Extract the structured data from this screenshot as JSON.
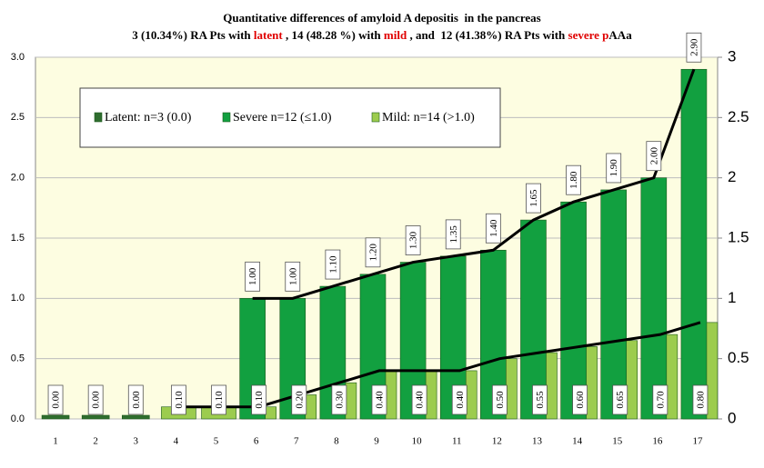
{
  "chart_data": {
    "type": "bar",
    "title": "Quantitative differences of amyloid A depositis  in the pancreas",
    "subtitle": [
      {
        "text": "3 (10.34%) RA Pts with ",
        "color": "#000000"
      },
      {
        "text": "latent",
        "color": "#e00000"
      },
      {
        "text": " , 14 (48.28 %) with ",
        "color": "#000000"
      },
      {
        "text": "mild",
        "color": "#e00000"
      },
      {
        "text": " , and  12 (41.38%) RA Pts with ",
        "color": "#000000"
      },
      {
        "text": "severe p",
        "color": "#e00000"
      },
      {
        "text": "AAa",
        "color": "#000000"
      }
    ],
    "categories": [
      "1",
      "2",
      "3",
      "4",
      "5",
      "6",
      "7",
      "8",
      "9",
      "10",
      "11",
      "12",
      "13",
      "14",
      "15",
      "16",
      "17"
    ],
    "series": [
      {
        "name": "Latent: n=3 (0.0)",
        "color": "#2f6d2f",
        "line": false,
        "values": [
          0,
          0,
          0,
          null,
          null,
          null,
          null,
          null,
          null,
          null,
          null,
          null,
          null,
          null,
          null,
          null,
          null
        ],
        "value_labels": [
          "0.00",
          "0.00",
          "0.00",
          null,
          null,
          null,
          null,
          null,
          null,
          null,
          null,
          null,
          null,
          null,
          null,
          null,
          null
        ]
      },
      {
        "name": "Severe n=12 (≤1.0)",
        "color": "#12a040",
        "line": true,
        "values": [
          null,
          null,
          null,
          null,
          null,
          1.0,
          1.0,
          1.1,
          1.2,
          1.3,
          1.35,
          1.4,
          1.65,
          1.8,
          1.9,
          2.0,
          2.9
        ],
        "value_labels": [
          null,
          null,
          null,
          null,
          null,
          "1.00",
          "1.00",
          "1.10",
          "1.20",
          "1.30",
          "1.35",
          "1.40",
          "1.65",
          "1.80",
          "1.90",
          "2.00",
          "2.90"
        ]
      },
      {
        "name": "Mild: n=14 (>1.0)",
        "color": "#9ccc4e",
        "line": true,
        "values": [
          null,
          null,
          null,
          0.1,
          0.1,
          0.1,
          0.2,
          0.3,
          0.4,
          0.4,
          0.4,
          0.5,
          0.55,
          0.6,
          0.65,
          0.7,
          0.8
        ],
        "value_labels": [
          null,
          null,
          null,
          "0.10",
          "0.10",
          "0.10",
          "0.20",
          "0.30",
          "0.40",
          "0.40",
          "0.40",
          "0.50",
          "0.55",
          "0.60",
          "0.65",
          "0.70",
          "0.80"
        ]
      }
    ],
    "ylim": [
      0,
      3
    ],
    "yticks": [
      {
        "value": 0,
        "label": "0.0"
      },
      {
        "value": 0.5,
        "label": "0.5"
      },
      {
        "value": 1,
        "label": "1.0"
      },
      {
        "value": 1.5,
        "label": "1.5"
      },
      {
        "value": 2,
        "label": "2.0"
      },
      {
        "value": 2.5,
        "label": "2.5"
      },
      {
        "value": 3,
        "label": "3.0"
      }
    ],
    "y2lim": [
      0,
      3
    ],
    "y2ticks": [
      0,
      0.5,
      1,
      1.5,
      2,
      2.5,
      3
    ],
    "grid": true
  }
}
